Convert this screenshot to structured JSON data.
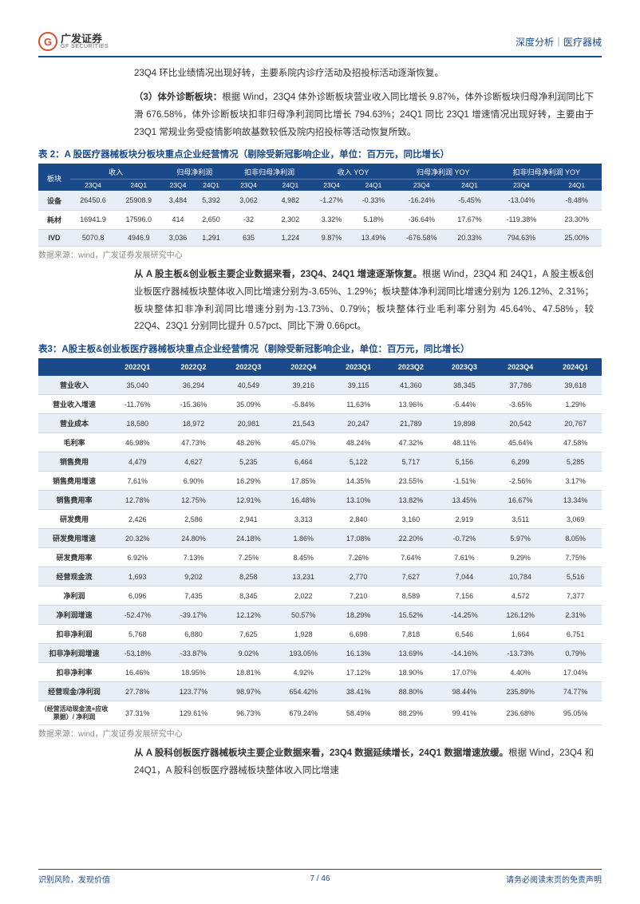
{
  "header": {
    "logo_cn": "广发证券",
    "logo_en": "GF SECURITIES",
    "right": "深度分析｜医疗器械"
  },
  "intro_line": "23Q4 环比业绩情况出现好转，主要系院内诊疗活动及招投标活动逐渐恢复。",
  "para3": {
    "lead": "（3）体外诊断板块：",
    "text": "根据 Wind，23Q4 体外诊断板块营业收入同比增长 9.87%，体外诊断板块归母净利润同比下滑 676.58%，体外诊断板块扣非归母净利润同比增长 794.63%；24Q1 同比 23Q1 增速情况出现好转，主要由于 23Q1 常规业务受疫情影响故基数较低及院内招投标等活动恢复所致。"
  },
  "table2": {
    "title": "表 2：A 股医疗器械板块分板块重点企业经营情况（剔除受新冠影响企业，单位：百万元，同比增长）",
    "group_headers": [
      "板块",
      "收入",
      "归母净利润",
      "扣非归母净利润",
      "收入 YOY",
      "归母净利润 YOY",
      "扣非归母净利润 YOY"
    ],
    "sub_headers": [
      "23Q4",
      "24Q1",
      "23Q4",
      "24Q1",
      "23Q4",
      "24Q1",
      "23Q4",
      "24Q1",
      "23Q4",
      "24Q1",
      "23Q4",
      "24Q1"
    ],
    "rows": [
      [
        "设备",
        "26450.6",
        "25908.9",
        "3,484",
        "5,392",
        "3,062",
        "4,982",
        "-1.27%",
        "-0.33%",
        "-16.24%",
        "-5.45%",
        "-13.04%",
        "-8.48%"
      ],
      [
        "耗材",
        "16941.9",
        "17596.0",
        "414",
        "2,650",
        "-32",
        "2,302",
        "3.32%",
        "5.18%",
        "-36.64%",
        "17.67%",
        "-119.38%",
        "23.30%"
      ],
      [
        "IVD",
        "5070.8",
        "4946.9",
        "3,036",
        "1,291",
        "635",
        "1,224",
        "9.87%",
        "13.49%",
        "-676.58%",
        "20.33%",
        "794.63%",
        "25.00%"
      ]
    ],
    "source": "数据来源：wind，广发证券发展研究中心"
  },
  "para_mid": {
    "lead": "从 A 股主板&创业板主要企业数据来看，23Q4、24Q1 增速逐渐恢复。",
    "text": "根据 Wind，23Q4 和 24Q1，A 股主板&创业板医疗器械板块整体收入同比增速分别为-3.65%、1.29%；板块整体净利润同比增速分别为 126.12%、2.31%；板块整体扣非净利润同比增速分别为-13.73%、0.79%；板块整体行业毛利率分别为 45.64%、47.58%，较 22Q4、23Q1 分别同比提升 0.57pct、同比下滑 0.66pct。"
  },
  "table3": {
    "title": "表3：A股主板&创业板医疗器械板块重点企业经营情况（剔除受新冠影响企业，单位：百万元，同比增长）",
    "headers": [
      "",
      "2022Q1",
      "2022Q2",
      "2022Q3",
      "2022Q4",
      "2023Q1",
      "2023Q2",
      "2023Q3",
      "2023Q4",
      "2024Q1"
    ],
    "rows": [
      [
        "营业收入",
        "35,040",
        "36,294",
        "40,549",
        "39,216",
        "39,115",
        "41,360",
        "38,345",
        "37,786",
        "39,618"
      ],
      [
        "营业收入增速",
        "-11.76%",
        "-15.36%",
        "35.09%",
        "-5.84%",
        "11.63%",
        "13.96%",
        "-5.44%",
        "-3.65%",
        "1.29%"
      ],
      [
        "营业成本",
        "18,580",
        "18,972",
        "20,981",
        "21,543",
        "20,247",
        "21,789",
        "19,898",
        "20,542",
        "20,767"
      ],
      [
        "毛利率",
        "46.98%",
        "47.73%",
        "48.26%",
        "45.07%",
        "48.24%",
        "47.32%",
        "48.11%",
        "45.64%",
        "47.58%"
      ],
      [
        "销售费用",
        "4,479",
        "4,627",
        "5,235",
        "6,464",
        "5,122",
        "5,717",
        "5,156",
        "6,299",
        "5,285"
      ],
      [
        "销售费用增速",
        "7.61%",
        "6.90%",
        "16.29%",
        "17.85%",
        "14.35%",
        "23.55%",
        "-1.51%",
        "-2.56%",
        "3.17%"
      ],
      [
        "销售费用率",
        "12.78%",
        "12.75%",
        "12.91%",
        "16.48%",
        "13.10%",
        "13.82%",
        "13.45%",
        "16.67%",
        "13.34%"
      ],
      [
        "研发费用",
        "2,426",
        "2,586",
        "2,941",
        "3,313",
        "2,840",
        "3,160",
        "2,919",
        "3,511",
        "3,069"
      ],
      [
        "研发费用增速",
        "20.32%",
        "24.80%",
        "24.18%",
        "1.86%",
        "17.08%",
        "22.20%",
        "-0.72%",
        "5.97%",
        "8.05%"
      ],
      [
        "研发费用率",
        "6.92%",
        "7.13%",
        "7.25%",
        "8.45%",
        "7.26%",
        "7.64%",
        "7.61%",
        "9.29%",
        "7.75%"
      ],
      [
        "经营现金流",
        "1,693",
        "9,202",
        "8,258",
        "13,231",
        "2,770",
        "7,627",
        "7,044",
        "10,784",
        "5,516"
      ],
      [
        "净利润",
        "6,096",
        "7,435",
        "8,345",
        "2,022",
        "7,210",
        "8,589",
        "7,156",
        "4,572",
        "7,377"
      ],
      [
        "净利润增速",
        "-52.47%",
        "-39.17%",
        "12.12%",
        "50.57%",
        "18.29%",
        "15.52%",
        "-14.25%",
        "126.12%",
        "2.31%"
      ],
      [
        "扣非净利润",
        "5,768",
        "6,880",
        "7,625",
        "1,928",
        "6,698",
        "7,818",
        "6,546",
        "1,664",
        "6,751"
      ],
      [
        "扣非净利润增速",
        "-53.18%",
        "-33.87%",
        "9.02%",
        "193.05%",
        "16.13%",
        "13.69%",
        "-14.16%",
        "-13.73%",
        "0.79%"
      ],
      [
        "扣非净利率",
        "16.46%",
        "18.95%",
        "18.81%",
        "4.92%",
        "17.12%",
        "18.90%",
        "17.07%",
        "4.40%",
        "17.04%"
      ],
      [
        "经营现金/净利润",
        "27.78%",
        "123.77%",
        "98.97%",
        "654.42%",
        "38.41%",
        "88.80%",
        "98.44%",
        "235.89%",
        "74.77%"
      ],
      [
        "（经营活动现金流+应收票据）/ 净利润",
        "37.31%",
        "129.61%",
        "96.73%",
        "679.24%",
        "58.49%",
        "88.29%",
        "99.41%",
        "236.68%",
        "95.05%"
      ]
    ],
    "source": "数据来源：wind，广发证券发展研究中心"
  },
  "para_end": {
    "lead": "从 A 股科创板医疗器械板块主要企业数据来看，23Q4 数据延续增长，24Q1 数据增速放缓。",
    "text": "根据 Wind，23Q4 和 24Q1，A 股科创板医疗器械板块整体收入同比增速"
  },
  "footer": {
    "left": "识别风险，发现价值",
    "page": "7 / 46",
    "right": "请务必阅读末页的免责声明"
  },
  "colors": {
    "brand_blue": "#1a4a8a",
    "brand_red": "#d84c2b",
    "row_alt": "#e8eef5",
    "border": "#d0d8e4",
    "muted": "#888888"
  }
}
